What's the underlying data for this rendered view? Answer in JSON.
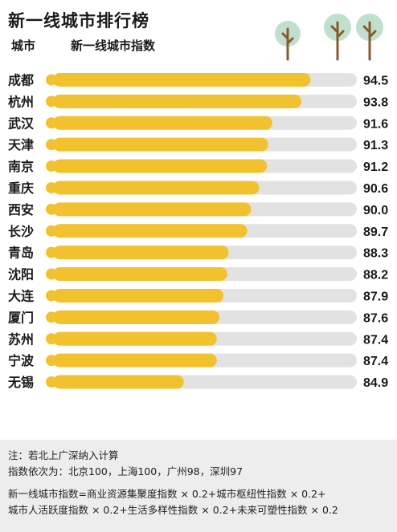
{
  "header": {
    "title": "新一线城市排行榜",
    "col_city": "城市",
    "col_index": "新一线城市指数"
  },
  "colors": {
    "bar": "#f2c12e",
    "track": "#e2e2e2",
    "dot": "#f2c12e",
    "tree_crown": "#bfe0cf",
    "tree_trunk": "#8b5a2b"
  },
  "icons": [
    "tree-icon",
    "tree-icon",
    "tree-icon"
  ],
  "chart_data": {
    "type": "bar",
    "orientation": "horizontal",
    "categories": [
      "成都",
      "杭州",
      "武汉",
      "天津",
      "南京",
      "重庆",
      "西安",
      "长沙",
      "青岛",
      "沈阳",
      "大连",
      "厦门",
      "苏州",
      "宁波",
      "无锡"
    ],
    "values": [
      94.5,
      93.8,
      91.6,
      91.3,
      91.2,
      90.6,
      90.0,
      89.7,
      88.3,
      88.2,
      87.9,
      87.6,
      87.4,
      87.4,
      84.9
    ],
    "value_labels": [
      "94.5",
      "93.8",
      "91.6",
      "91.3",
      "91.2",
      "90.6",
      "90.0",
      "89.7",
      "88.3",
      "88.2",
      "87.9",
      "87.6",
      "87.4",
      "87.4",
      "84.9"
    ],
    "xlim": [
      75,
      98
    ],
    "grid": false,
    "legend": "none"
  },
  "note": {
    "line1": "注：若北上广深纳入计算",
    "line2": "指数依次为：北京100，上海100，广州98，深圳97",
    "line3": "新一线城市指数=商业资源集聚度指数 × 0.2+城市枢纽性指数 × 0.2+",
    "line4": "城市人活跃度指数 × 0.2+生活多样性指数 × 0.2+未来可塑性指数 × 0.2"
  }
}
